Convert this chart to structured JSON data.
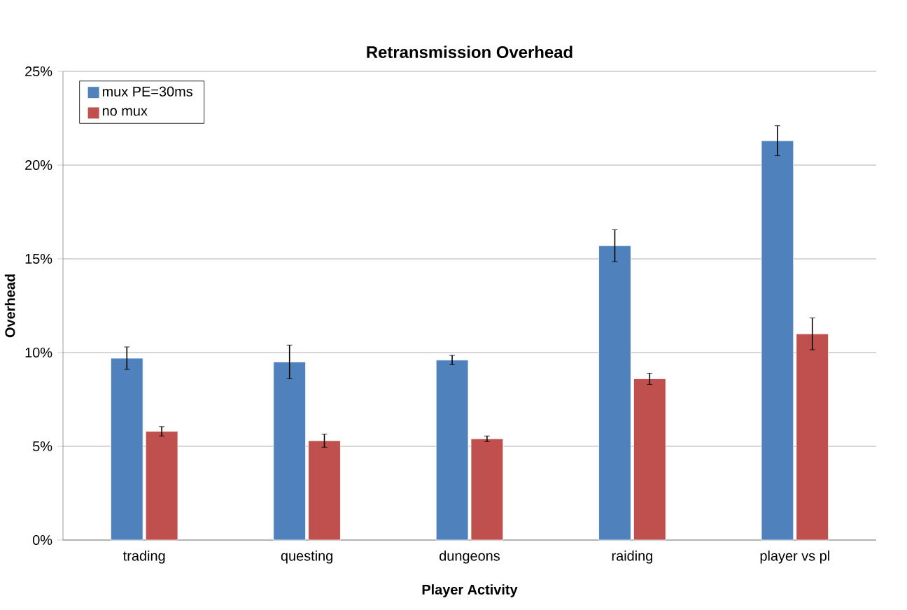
{
  "chart_data": {
    "type": "bar",
    "title": "Retransmission Overhead",
    "xlabel": "Player Activity",
    "ylabel": "Overhead",
    "categories": [
      "trading",
      "questing",
      "dungeons",
      "raiding",
      "player vs pl"
    ],
    "series": [
      {
        "name": "mux PE=30ms",
        "color": "#4f81bd",
        "values": [
          9.7,
          9.5,
          9.6,
          15.7,
          21.3
        ],
        "errors": [
          0.6,
          0.9,
          0.25,
          0.85,
          0.8
        ]
      },
      {
        "name": "no mux",
        "color": "#c0504d",
        "values": [
          5.8,
          5.3,
          5.4,
          8.6,
          11.0
        ],
        "errors": [
          0.25,
          0.35,
          0.15,
          0.3,
          0.85
        ]
      }
    ],
    "ylim": [
      0,
      25
    ],
    "yticks": [
      {
        "value": 0,
        "label": "0%"
      },
      {
        "value": 5,
        "label": "5%"
      },
      {
        "value": 10,
        "label": "10%"
      },
      {
        "value": 15,
        "label": "15%"
      },
      {
        "value": 20,
        "label": "20%"
      },
      {
        "value": 25,
        "label": "25%"
      }
    ],
    "grid": "y",
    "legend": "top left"
  }
}
